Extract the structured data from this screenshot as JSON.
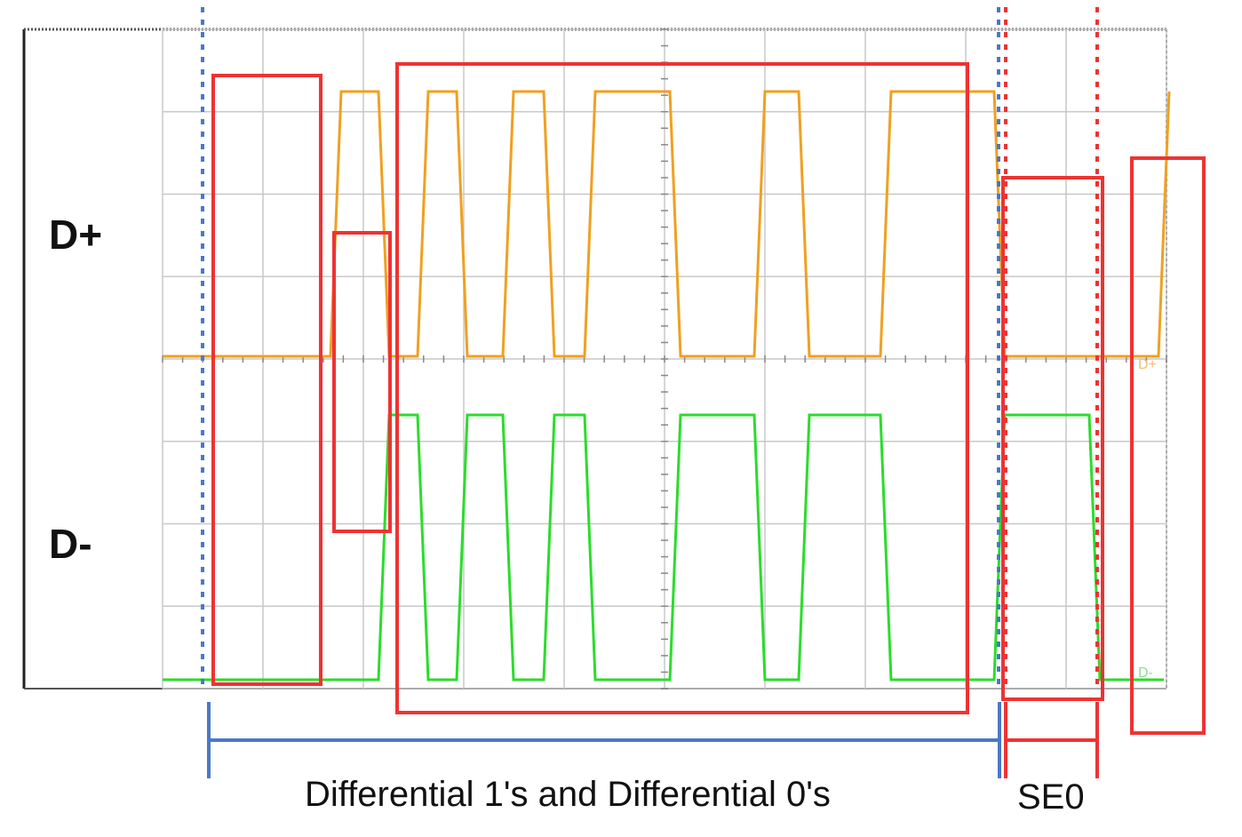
{
  "labels": {
    "d_plus": "D+",
    "d_minus": "D-",
    "differential_caption": "Differential 1's and Differential 0's",
    "se0_caption": "SE0",
    "scope_tag_dplus": "D+",
    "scope_tag_dminus": "D-"
  },
  "colors": {
    "d_plus_trace": "#f0a020",
    "d_minus_trace": "#2bdc2b",
    "highlight_box": "#ee3333",
    "bracket_blue": "#4a78c8",
    "grid": "#c8c8c8"
  },
  "signal": {
    "d_plus_levels": [
      0,
      1,
      0,
      1,
      0,
      1,
      0,
      1,
      0,
      1,
      0,
      1,
      0,
      0,
      1
    ],
    "d_minus_levels": [
      0,
      0,
      1,
      0,
      1,
      0,
      1,
      0,
      1,
      0,
      1,
      0,
      1,
      0,
      0
    ]
  }
}
